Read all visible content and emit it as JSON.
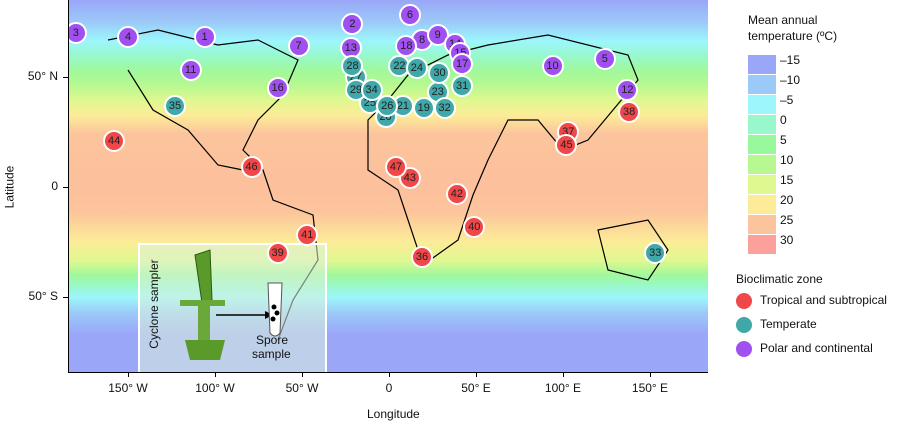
{
  "axes": {
    "xlabel": "Longitude",
    "ylabel": "Latitude",
    "xticks": [
      {
        "lon": -150,
        "label": "150° W"
      },
      {
        "lon": -100,
        "label": "100° W"
      },
      {
        "lon": -50,
        "label": "50° W"
      },
      {
        "lon": 0,
        "label": "0"
      },
      {
        "lon": 50,
        "label": "50° E"
      },
      {
        "lon": 100,
        "label": "100° E"
      },
      {
        "lon": 150,
        "label": "150° E"
      }
    ],
    "yticks": [
      {
        "lat": 50,
        "label": "50° N"
      },
      {
        "lat": 0,
        "label": "0"
      },
      {
        "lat": -50,
        "label": "50° S"
      }
    ]
  },
  "temp_legend": {
    "title1": "Mean annual",
    "title2": "temperature (ºC)",
    "items": [
      {
        "label": "–15",
        "color": "#9aa6f8"
      },
      {
        "label": "–10",
        "color": "#9ccaf8"
      },
      {
        "label": "–5",
        "color": "#9cf6fc"
      },
      {
        "label": "0",
        "color": "#98f8cc"
      },
      {
        "label": "5",
        "color": "#98f89c"
      },
      {
        "label": "10",
        "color": "#b8f890"
      },
      {
        "label": "15",
        "color": "#e0f890"
      },
      {
        "label": "20",
        "color": "#fcec98"
      },
      {
        "label": "25",
        "color": "#fcc49c"
      },
      {
        "label": "30",
        "color": "#fca09c"
      }
    ]
  },
  "zone_legend": {
    "title": "Bioclimatic zone",
    "items": [
      {
        "key": "tropical",
        "label": "Tropical and subtropical",
        "color": "#f04848"
      },
      {
        "key": "temperate",
        "label": "Temperate",
        "color": "#40a8a8"
      },
      {
        "key": "polar",
        "label": "Polar and continental",
        "color": "#a050f0"
      }
    ]
  },
  "inset": {
    "sampler_label": "Cyclone sampler",
    "sample_label1": "Spore",
    "sample_label2": "sample"
  },
  "sites": [
    {
      "id": "1",
      "lon": -106,
      "lat": 68,
      "zone": "polar"
    },
    {
      "id": "2",
      "lon": -21,
      "lat": 74,
      "zone": "polar"
    },
    {
      "id": "3",
      "lon": -180,
      "lat": 70,
      "zone": "polar"
    },
    {
      "id": "4",
      "lon": -150,
      "lat": 68,
      "zone": "polar"
    },
    {
      "id": "5",
      "lon": 124,
      "lat": 58,
      "zone": "polar"
    },
    {
      "id": "6",
      "lon": 12,
      "lat": 78,
      "zone": "polar"
    },
    {
      "id": "7",
      "lon": -52,
      "lat": 64,
      "zone": "polar"
    },
    {
      "id": "8",
      "lon": 19,
      "lat": 67,
      "zone": "polar"
    },
    {
      "id": "9",
      "lon": 28,
      "lat": 69,
      "zone": "polar"
    },
    {
      "id": "10",
      "lon": 94,
      "lat": 55,
      "zone": "polar"
    },
    {
      "id": "11",
      "lon": -114,
      "lat": 53,
      "zone": "polar"
    },
    {
      "id": "12",
      "lon": 137,
      "lat": 44,
      "zone": "polar"
    },
    {
      "id": "13",
      "lon": -22,
      "lat": 63,
      "zone": "polar"
    },
    {
      "id": "14",
      "lon": 38,
      "lat": 65,
      "zone": "polar"
    },
    {
      "id": "15",
      "lon": 41,
      "lat": 61,
      "zone": "polar"
    },
    {
      "id": "16",
      "lon": -64,
      "lat": 45,
      "zone": "polar"
    },
    {
      "id": "17",
      "lon": 42,
      "lat": 56,
      "zone": "polar"
    },
    {
      "id": "18",
      "lon": 10,
      "lat": 64,
      "zone": "polar"
    },
    {
      "id": "19",
      "lon": 20,
      "lat": 36,
      "zone": "temperate"
    },
    {
      "id": "20",
      "lon": -2,
      "lat": 32,
      "zone": "temperate"
    },
    {
      "id": "21",
      "lon": 8,
      "lat": 37,
      "zone": "temperate"
    },
    {
      "id": "22",
      "lon": 6,
      "lat": 55,
      "zone": "temperate"
    },
    {
      "id": "23",
      "lon": 28,
      "lat": 43,
      "zone": "temperate"
    },
    {
      "id": "24",
      "lon": 16,
      "lat": 54,
      "zone": "temperate"
    },
    {
      "id": "25",
      "lon": -11,
      "lat": 38,
      "zone": "temperate"
    },
    {
      "id": "26",
      "lon": -1,
      "lat": 37,
      "zone": "temperate"
    },
    {
      "id": "27",
      "lon": -19,
      "lat": 50,
      "zone": "temperate"
    },
    {
      "id": "28",
      "lon": -21,
      "lat": 55,
      "zone": "temperate"
    },
    {
      "id": "29",
      "lon": -19,
      "lat": 44,
      "zone": "temperate"
    },
    {
      "id": "30",
      "lon": 29,
      "lat": 52,
      "zone": "temperate"
    },
    {
      "id": "31",
      "lon": 42,
      "lat": 46,
      "zone": "temperate"
    },
    {
      "id": "32",
      "lon": 32,
      "lat": 36,
      "zone": "temperate"
    },
    {
      "id": "33",
      "lon": 153,
      "lat": -30,
      "zone": "temperate"
    },
    {
      "id": "34",
      "lon": -10,
      "lat": 44,
      "zone": "temperate"
    },
    {
      "id": "35",
      "lon": -123,
      "lat": 37,
      "zone": "temperate"
    },
    {
      "id": "36",
      "lon": 19,
      "lat": -32,
      "zone": "tropical"
    },
    {
      "id": "37",
      "lon": 103,
      "lat": 25,
      "zone": "tropical"
    },
    {
      "id": "38",
      "lon": 138,
      "lat": 34,
      "zone": "tropical"
    },
    {
      "id": "39",
      "lon": -64,
      "lat": -30,
      "zone": "tropical"
    },
    {
      "id": "40",
      "lon": 49,
      "lat": -18,
      "zone": "tropical"
    },
    {
      "id": "41",
      "lon": -47,
      "lat": -22,
      "zone": "tropical"
    },
    {
      "id": "42",
      "lon": 39,
      "lat": -3,
      "zone": "tropical"
    },
    {
      "id": "43",
      "lon": 12,
      "lat": 4,
      "zone": "tropical"
    },
    {
      "id": "44",
      "lon": -158,
      "lat": 21,
      "zone": "tropical"
    },
    {
      "id": "45",
      "lon": 102,
      "lat": 19,
      "zone": "tropical"
    },
    {
      "id": "46",
      "lon": -79,
      "lat": 9,
      "zone": "tropical"
    },
    {
      "id": "47",
      "lon": 4,
      "lat": 9,
      "zone": "tropical"
    }
  ]
}
